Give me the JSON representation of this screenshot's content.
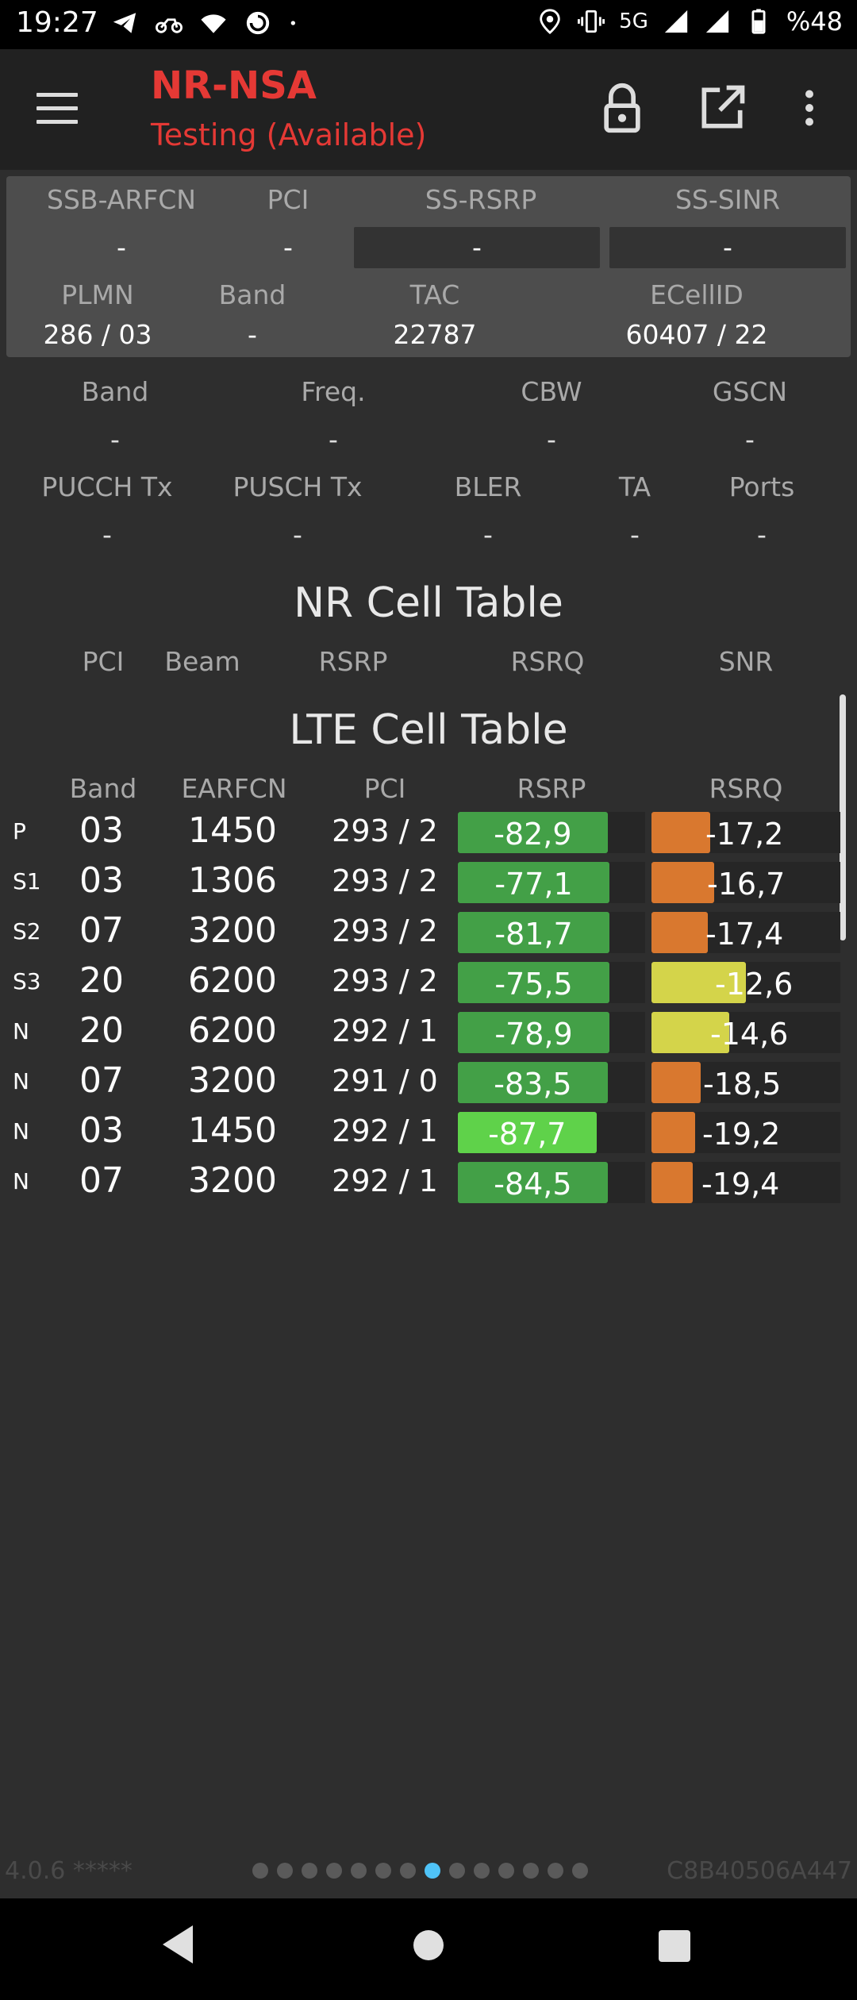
{
  "status_bar": {
    "time": "19:27",
    "left_icons": [
      "telegram-icon",
      "motorbike-icon",
      "wifi-icon",
      "spiral-app-icon",
      "dot-icon"
    ],
    "right_icons": [
      "location-icon",
      "vibrate-icon",
      "signal-icon",
      "signal-icon",
      "battery-icon"
    ],
    "network": "5G",
    "battery": "%48"
  },
  "app_bar": {
    "title": "NR-NSA",
    "subtitle": "Testing (Available)",
    "actions": [
      "lock-icon",
      "open-external-icon",
      "more-vert-icon"
    ],
    "title_color": "#e53935"
  },
  "nr_info": {
    "labels_row1": [
      "SSB-ARFCN",
      "PCI",
      "SS-RSRP",
      "SS-SINR"
    ],
    "values_row1": [
      "-",
      "-",
      "-",
      "-"
    ],
    "labels_row2": [
      "PLMN",
      "Band",
      "TAC",
      "ECellID"
    ],
    "values_row2": [
      "286 / 03",
      "-",
      "22787",
      "60407 / 22"
    ]
  },
  "lte_info": {
    "labels_row1": [
      "Band",
      "Freq.",
      "CBW",
      "GSCN"
    ],
    "values_row1": [
      "-",
      "-",
      "-",
      "-"
    ],
    "labels_row2": [
      "PUCCH Tx",
      "PUSCH Tx",
      "BLER",
      "TA",
      "Ports"
    ],
    "values_row2": [
      "-",
      "-",
      "-",
      "-",
      "-"
    ]
  },
  "nr_table": {
    "title": "NR Cell Table",
    "headers": [
      "PCI",
      "Beam",
      "RSRP",
      "RSRQ",
      "SNR"
    ]
  },
  "lte_table": {
    "title": "LTE Cell Table",
    "headers": [
      "Band",
      "EARFCN",
      "PCI",
      "RSRP",
      "RSRQ"
    ],
    "rows": [
      {
        "type": "P",
        "band": "03",
        "earfcn": "1450",
        "pci": "293 / 2",
        "rsrp": "-82,9",
        "rsrq": "-17,2",
        "rsrp_level": 0.8,
        "rsrq_level": 0.31,
        "rsrp_color": "#43a047",
        "rsrq_color": "#d9782f"
      },
      {
        "type": "S1",
        "band": "03",
        "earfcn": "1306",
        "pci": "293 / 2",
        "rsrp": "-77,1",
        "rsrq": "-16,7",
        "rsrp_level": 0.81,
        "rsrq_level": 0.33,
        "rsrp_color": "#43a047",
        "rsrq_color": "#d9782f"
      },
      {
        "type": "S2",
        "band": "07",
        "earfcn": "3200",
        "pci": "293 / 2",
        "rsrp": "-81,7",
        "rsrq": "-17,4",
        "rsrp_level": 0.81,
        "rsrq_level": 0.3,
        "rsrp_color": "#43a047",
        "rsrq_color": "#d9782f"
      },
      {
        "type": "S3",
        "band": "20",
        "earfcn": "6200",
        "pci": "293 / 2",
        "rsrp": "-75,5",
        "rsrq": "-12,6",
        "rsrp_level": 0.81,
        "rsrq_level": 0.5,
        "rsrp_color": "#43a047",
        "rsrq_color": "#d4d44a"
      },
      {
        "type": "N",
        "band": "20",
        "earfcn": "6200",
        "pci": "292 / 1",
        "rsrp": "-78,9",
        "rsrq": "-14,6",
        "rsrp_level": 0.81,
        "rsrq_level": 0.41,
        "rsrp_color": "#43a047",
        "rsrq_color": "#d4d44a"
      },
      {
        "type": "N",
        "band": "07",
        "earfcn": "3200",
        "pci": "291 / 0",
        "rsrp": "-83,5",
        "rsrq": "-18,5",
        "rsrp_level": 0.8,
        "rsrq_level": 0.26,
        "rsrp_color": "#43a047",
        "rsrq_color": "#d9782f"
      },
      {
        "type": "N",
        "band": "03",
        "earfcn": "1450",
        "pci": "292 / 1",
        "rsrp": "-87,7",
        "rsrq": "-19,2",
        "rsrp_level": 0.74,
        "rsrq_level": 0.23,
        "rsrp_color": "#5fd24a",
        "rsrq_color": "#d9782f"
      },
      {
        "type": "N",
        "band": "07",
        "earfcn": "3200",
        "pci": "292 / 1",
        "rsrp": "-84,5",
        "rsrq": "-19,4",
        "rsrp_level": 0.8,
        "rsrq_level": 0.22,
        "rsrp_color": "#43a047",
        "rsrq_color": "#d9782f"
      }
    ]
  },
  "footer": {
    "version": "4.0.6 *****",
    "device_id": "C8B40506A447",
    "page_count": 14,
    "active_page": 7,
    "active_dot_color": "#4fc3f7"
  },
  "nav_bar": {
    "buttons": [
      "back-icon",
      "home-icon",
      "recents-icon"
    ]
  }
}
